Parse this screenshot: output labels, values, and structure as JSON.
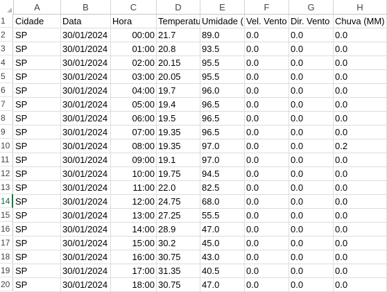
{
  "columns": [
    "A",
    "B",
    "C",
    "D",
    "E",
    "F",
    "G",
    "H"
  ],
  "row_numbers": [
    "1",
    "2",
    "3",
    "4",
    "5",
    "6",
    "7",
    "8",
    "9",
    "10",
    "11",
    "12",
    "13",
    "14",
    "15",
    "16",
    "17",
    "18",
    "19",
    "20"
  ],
  "selected_row": "14",
  "header_row": [
    "Cidade",
    "Data",
    "Hora",
    "Temperatu",
    "Umidade (",
    "Vel. Vento",
    "Dir. Vento",
    "Chuva (MM)"
  ],
  "rows": [
    [
      "SP",
      "30/01/2024",
      "00:00",
      "21.7",
      "89.0",
      "0.0",
      "0.0",
      "0.0"
    ],
    [
      "SP",
      "30/01/2024",
      "01:00",
      "20.8",
      "93.5",
      "0.0",
      "0.0",
      "0.0"
    ],
    [
      "SP",
      "30/01/2024",
      "02:00",
      "20.15",
      "95.5",
      "0.0",
      "0.0",
      "0.0"
    ],
    [
      "SP",
      "30/01/2024",
      "03:00",
      "20.05",
      "95.5",
      "0.0",
      "0.0",
      "0.0"
    ],
    [
      "SP",
      "30/01/2024",
      "04:00",
      "19.7",
      "96.0",
      "0.0",
      "0.0",
      "0.0"
    ],
    [
      "SP",
      "30/01/2024",
      "05:00",
      "19.4",
      "96.5",
      "0.0",
      "0.0",
      "0.0"
    ],
    [
      "SP",
      "30/01/2024",
      "06:00",
      "19.5",
      "96.5",
      "0.0",
      "0.0",
      "0.0"
    ],
    [
      "SP",
      "30/01/2024",
      "07:00",
      "19.35",
      "96.5",
      "0.0",
      "0.0",
      "0.0"
    ],
    [
      "SP",
      "30/01/2024",
      "08:00",
      "19.35",
      "97.0",
      "0.0",
      "0.0",
      "0.2"
    ],
    [
      "SP",
      "30/01/2024",
      "09:00",
      "19.1",
      "97.0",
      "0.0",
      "0.0",
      "0.0"
    ],
    [
      "SP",
      "30/01/2024",
      "10:00",
      "19.75",
      "94.5",
      "0.0",
      "0.0",
      "0.0"
    ],
    [
      "SP",
      "30/01/2024",
      "11:00",
      "22.0",
      "82.5",
      "0.0",
      "0.0",
      "0.0"
    ],
    [
      "SP",
      "30/01/2024",
      "12:00",
      "24.75",
      "68.0",
      "0.0",
      "0.0",
      "0.0"
    ],
    [
      "SP",
      "30/01/2024",
      "13:00",
      "27.25",
      "55.5",
      "0.0",
      "0.0",
      "0.0"
    ],
    [
      "SP",
      "30/01/2024",
      "14:00",
      "28.9",
      "47.0",
      "0.0",
      "0.0",
      "0.0"
    ],
    [
      "SP",
      "30/01/2024",
      "15:00",
      "30.2",
      "45.0",
      "0.0",
      "0.0",
      "0.0"
    ],
    [
      "SP",
      "30/01/2024",
      "16:00",
      "30.75",
      "43.0",
      "0.0",
      "0.0",
      "0.0"
    ],
    [
      "SP",
      "30/01/2024",
      "17:00",
      "31.35",
      "40.5",
      "0.0",
      "0.0",
      "0.0"
    ],
    [
      "SP",
      "30/01/2024",
      "18:00",
      "30.75",
      "47.0",
      "0.0",
      "0.0",
      "0.0"
    ]
  ],
  "accent_color": "#107c41"
}
